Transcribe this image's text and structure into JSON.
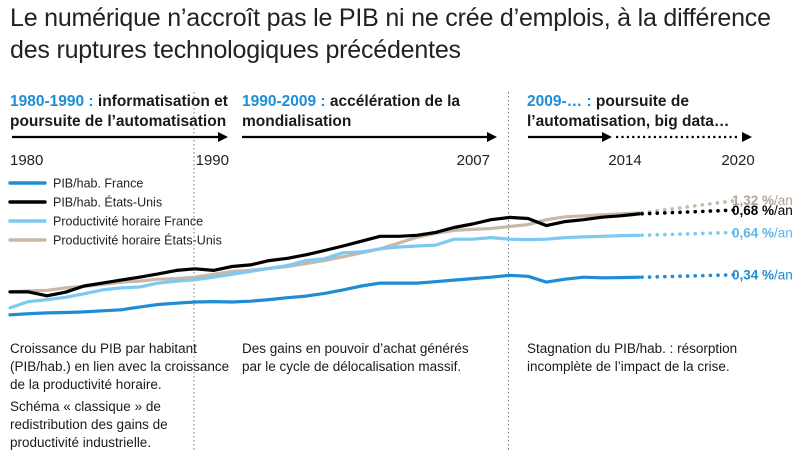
{
  "title": "Le numérique n’accroît pas le PIB ni ne crée d’emplois, à la différence des ruptures technologiques précédentes",
  "periods": [
    {
      "years": "1980-1990 :",
      "label": " informatisation et poursuite de l’automatisation"
    },
    {
      "years": "1990-2009 :",
      "label": " accélération de la mondialisation"
    },
    {
      "years": "2009-… :",
      "label": " poursuite de l’automatisation, big data…"
    }
  ],
  "notes": {
    "left_1": "Croissance du PIB par habitant (PIB/hab.) en lien avec la croissance de la productivité horaire.",
    "left_2": "Schéma « classique » de redistribution des gains de productivité industrielle.",
    "middle": "Des gains en pouvoir d’achat générés par le cycle de délocalisation massif.",
    "right": "Stagnation du PIB/hab. : résorption incomplète de l’impact de la crise."
  },
  "chart_data": {
    "type": "line",
    "title": "",
    "xlabel": "",
    "ylabel": "",
    "x_tick_labels": [
      "1980",
      "1990",
      "2007",
      "2014",
      "2020"
    ],
    "xlim": [
      1980,
      2020
    ],
    "ylim": [
      0,
      1
    ],
    "y_axis_shown": false,
    "grid": false,
    "legend_position": "top-left",
    "period_dividers": [
      1990,
      2007
    ],
    "projection_start": 2014,
    "projection_end": 2020,
    "series": [
      {
        "name": "PIB/hab. France",
        "color": "#1f8dd6",
        "x": [
          1980,
          1981,
          1982,
          1983,
          1984,
          1985,
          1986,
          1987,
          1988,
          1989,
          1990,
          1991,
          1992,
          1993,
          1994,
          1995,
          1996,
          1997,
          1998,
          1999,
          2000,
          2001,
          2002,
          2003,
          2004,
          2005,
          2006,
          2007,
          2008,
          2009,
          2010,
          2011,
          2012,
          2013,
          2014
        ],
        "y": [
          0.052,
          0.058,
          0.062,
          0.064,
          0.067,
          0.073,
          0.078,
          0.092,
          0.105,
          0.112,
          0.118,
          0.12,
          0.118,
          0.122,
          0.13,
          0.14,
          0.148,
          0.162,
          0.18,
          0.2,
          0.215,
          0.215,
          0.215,
          0.222,
          0.23,
          0.238,
          0.245,
          0.255,
          0.25,
          0.22,
          0.235,
          0.245,
          0.242,
          0.243,
          0.245
        ],
        "projection_end_value": 0.258,
        "end_label": "0,34 %/an"
      },
      {
        "name": "PIB/hab. États-Unis",
        "color": "#000000",
        "x": [
          1980,
          1981,
          1982,
          1983,
          1984,
          1985,
          1986,
          1987,
          1988,
          1989,
          1990,
          1991,
          1992,
          1993,
          1994,
          1995,
          1996,
          1997,
          1998,
          1999,
          2000,
          2001,
          2002,
          2003,
          2004,
          2005,
          2006,
          2007,
          2008,
          2009,
          2010,
          2011,
          2012,
          2013,
          2014
        ],
        "y": [
          0.17,
          0.17,
          0.15,
          0.168,
          0.2,
          0.215,
          0.23,
          0.245,
          0.262,
          0.28,
          0.288,
          0.28,
          0.3,
          0.308,
          0.33,
          0.342,
          0.36,
          0.382,
          0.405,
          0.43,
          0.455,
          0.455,
          0.46,
          0.475,
          0.5,
          0.518,
          0.54,
          0.552,
          0.546,
          0.51,
          0.53,
          0.54,
          0.553,
          0.56,
          0.57
        ],
        "projection_end_value": 0.59,
        "end_label": "0,68 %/an"
      },
      {
        "name": "Productivité horaire France",
        "color": "#7ccaf2",
        "x": [
          1980,
          1981,
          1982,
          1983,
          1984,
          1985,
          1986,
          1987,
          1988,
          1989,
          1990,
          1991,
          1992,
          1993,
          1994,
          1995,
          1996,
          1997,
          1998,
          1999,
          2000,
          2001,
          2002,
          2003,
          2004,
          2005,
          2006,
          2007,
          2008,
          2009,
          2010,
          2011,
          2012,
          2013,
          2014
        ],
        "y": [
          0.088,
          0.12,
          0.13,
          0.142,
          0.16,
          0.18,
          0.19,
          0.195,
          0.215,
          0.225,
          0.232,
          0.245,
          0.26,
          0.275,
          0.29,
          0.305,
          0.33,
          0.34,
          0.37,
          0.375,
          0.39,
          0.4,
          0.405,
          0.41,
          0.44,
          0.44,
          0.448,
          0.44,
          0.438,
          0.44,
          0.448,
          0.452,
          0.455,
          0.458,
          0.46
        ],
        "projection_end_value": 0.475,
        "end_label": "0,64 %/an"
      },
      {
        "name": "Productivité horaire États-Unis",
        "color": "#c9b8a8",
        "x": [
          1980,
          1981,
          1982,
          1983,
          1984,
          1985,
          1986,
          1987,
          1988,
          1989,
          1990,
          1991,
          1992,
          1993,
          1994,
          1995,
          1996,
          1997,
          1998,
          1999,
          2000,
          2001,
          2002,
          2003,
          2004,
          2005,
          2006,
          2007,
          2008,
          2009,
          2010,
          2011,
          2012,
          2013,
          2014
        ],
        "y": [
          0.17,
          0.175,
          0.178,
          0.19,
          0.198,
          0.208,
          0.22,
          0.225,
          0.235,
          0.238,
          0.245,
          0.26,
          0.275,
          0.28,
          0.29,
          0.3,
          0.315,
          0.33,
          0.35,
          0.37,
          0.39,
          0.42,
          0.45,
          0.47,
          0.485,
          0.49,
          0.495,
          0.505,
          0.515,
          0.54,
          0.555,
          0.56,
          0.565,
          0.57,
          0.575
        ],
        "projection_end_value": 0.64,
        "end_label": "1,32 %/an"
      }
    ]
  }
}
